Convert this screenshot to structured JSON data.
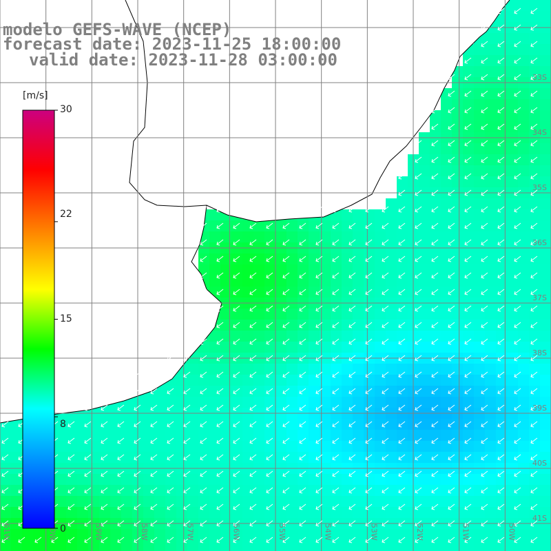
{
  "title": {
    "line1": "modelo GEFS-WAVE (NCEP)",
    "line2": "forecast date: 2023-11-25 18:00:00",
    "line3": "valid date: 2023-11-28 03:00:00"
  },
  "colorbar": {
    "unit": "[m/s]",
    "min": 0,
    "max": 30,
    "tick_labels": [
      "30",
      "22",
      "15",
      "8",
      "0"
    ],
    "tick_values": [
      30,
      22,
      15,
      8,
      0
    ],
    "colors": [
      "#0000ff",
      "#0080ff",
      "#00ffff",
      "#00ff00",
      "#ffff00",
      "#ff8000",
      "#ff0000",
      "#cc0080"
    ]
  },
  "map": {
    "lon_range": [
      -61,
      -49
    ],
    "lat_range": [
      -41.5,
      -31.5
    ],
    "lon_labels": [
      "61W",
      "60W",
      "59W",
      "58W",
      "57W",
      "56W",
      "55W",
      "54W",
      "53W",
      "52W",
      "51W",
      "50W"
    ],
    "lat_labels": [
      "33S",
      "34S",
      "35S",
      "36S",
      "37S",
      "38S",
      "39S",
      "40S",
      "41S"
    ],
    "grid_color": "#808080",
    "land_color": "#ffffff",
    "arrow_color": "#ffffff",
    "coast_color": "#000000"
  }
}
